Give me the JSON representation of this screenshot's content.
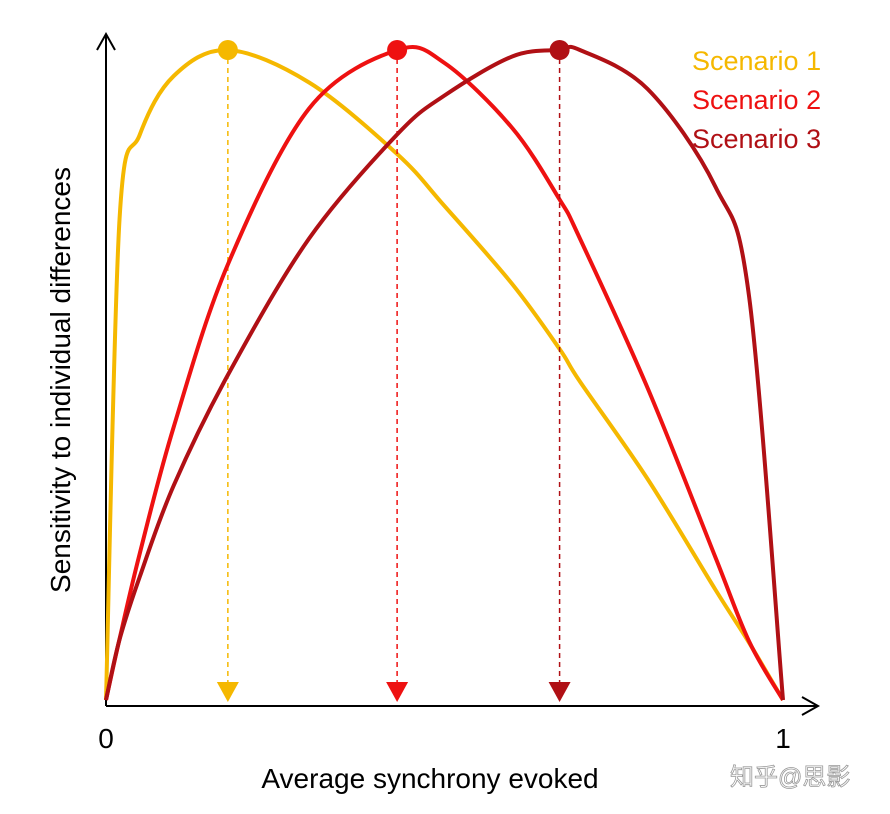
{
  "chart_data": {
    "type": "line",
    "title": "",
    "xlabel": "Average synchrony evoked",
    "ylabel": "Sensitivity to individual differences",
    "xlim": [
      0,
      1
    ],
    "ylim": [
      0,
      1
    ],
    "x_ticks": [
      "0",
      "1"
    ],
    "grid": false,
    "legend_position": "top-right",
    "x": [
      0,
      0.02,
      0.05,
      0.1,
      0.18,
      0.3,
      0.43,
      0.5,
      0.6,
      0.67,
      0.7,
      0.8,
      0.9,
      0.95,
      1
    ],
    "series": [
      {
        "name": "Scenario 1",
        "color": "#F5B800",
        "peak_x": 0.18,
        "values": [
          0,
          0.74,
          0.87,
          0.96,
          1,
          0.95,
          0.84,
          0.76,
          0.64,
          0.54,
          0.49,
          0.34,
          0.17,
          0.088,
          0
        ]
      },
      {
        "name": "Scenario 2",
        "color": "#EE1111",
        "peak_x": 0.43,
        "values": [
          0,
          0.094,
          0.226,
          0.42,
          0.67,
          0.91,
          1,
          0.98,
          0.88,
          0.77,
          0.71,
          0.48,
          0.22,
          0.09,
          0
        ]
      },
      {
        "name": "Scenario 3",
        "color": "#B01015",
        "peak_x": 0.67,
        "values": [
          0,
          0.093,
          0.19,
          0.33,
          0.5,
          0.71,
          0.87,
          0.93,
          0.99,
          1,
          1,
          0.94,
          0.79,
          0.62,
          0
        ]
      }
    ]
  },
  "watermark": "知乎@思影"
}
